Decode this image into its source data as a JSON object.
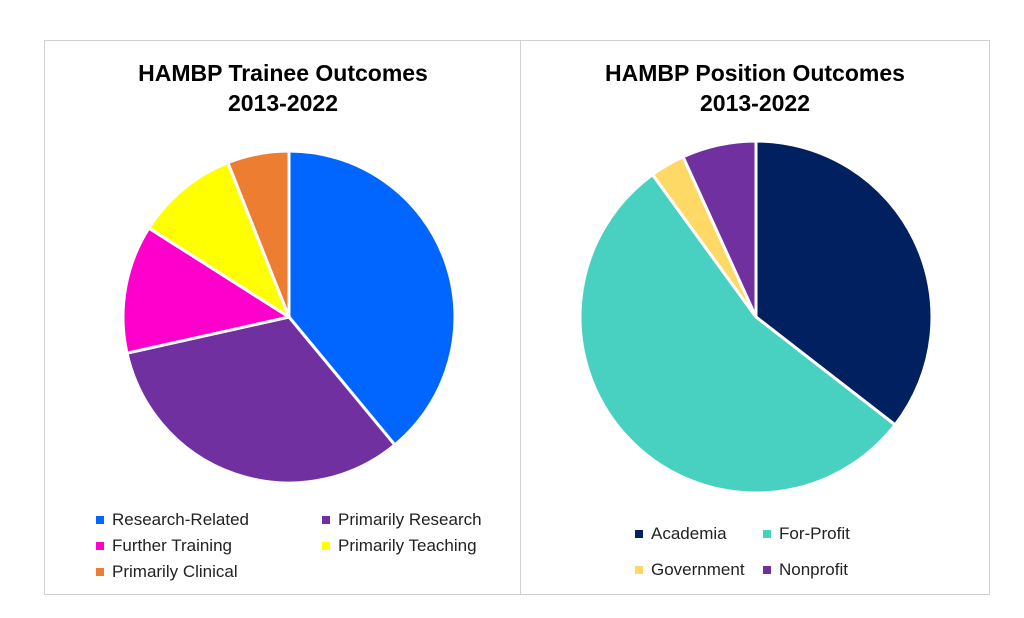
{
  "chart_data": [
    {
      "type": "pie",
      "title": [
        "HAMBP Trainee Outcomes",
        "2013-2022"
      ],
      "categories": [
        "Research-Related",
        "Primarily Research",
        "Further Training",
        "Primarily Teaching",
        "Primarily Clinical"
      ],
      "values": [
        39.0,
        32.5,
        12.5,
        10.0,
        6.0
      ],
      "colors": [
        "#0066FF",
        "#7030A0",
        "#FF00CC",
        "#FFFF00",
        "#ED7D31"
      ],
      "legend_position": "bottom"
    },
    {
      "type": "pie",
      "title": [
        "HAMBP Position Outcomes",
        "2013-2022"
      ],
      "categories": [
        "Academia",
        "For-Profit",
        "Government",
        "Nonprofit"
      ],
      "values": [
        35.5,
        54.5,
        3.2,
        6.8
      ],
      "colors": [
        "#002060",
        "#48D1C0",
        "#FFD966",
        "#7030A0"
      ],
      "legend_position": "bottom"
    }
  ]
}
